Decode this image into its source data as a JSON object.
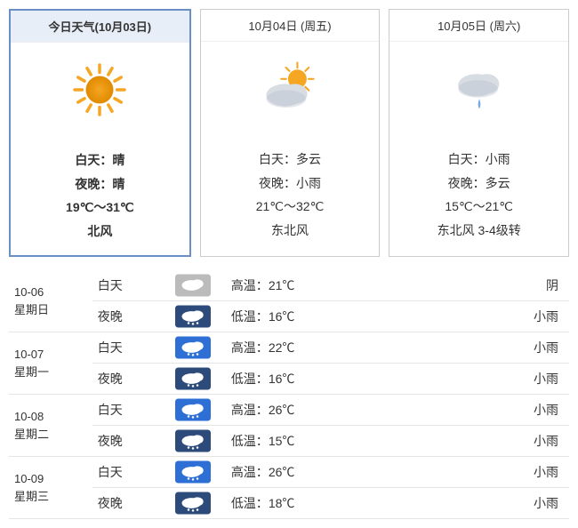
{
  "cards": [
    {
      "header": "今日天气(10月03日)",
      "active": true,
      "icon": "sunny",
      "day": "白天：晴",
      "night": "夜晚：晴",
      "temp": "19℃～31℃",
      "wind": "北风"
    },
    {
      "header": "10月04日 (周五)",
      "active": false,
      "icon": "partly",
      "day": "白天：多云",
      "night": "夜晚：小雨",
      "temp": "21℃～32℃",
      "wind": "东北风"
    },
    {
      "header": "10月05日 (周六)",
      "active": false,
      "icon": "rain",
      "day": "白天：小雨",
      "night": "夜晚：多云",
      "temp": "15℃～21℃",
      "wind": "东北风 3-4级转"
    }
  ],
  "rows": [
    {
      "date": "10-06",
      "dow": "星期日",
      "tod": "白天",
      "iconBg": "#bbbbbb",
      "iconFg": "#ffffff",
      "drops": false,
      "tlabel": "高温：",
      "tval": "21℃",
      "cond": "阴"
    },
    {
      "date": "",
      "dow": "",
      "tod": "夜晚",
      "iconBg": "#2d4b7a",
      "iconFg": "#ffffff",
      "drops": true,
      "tlabel": "低温：",
      "tval": "16℃",
      "cond": "小雨"
    },
    {
      "date": "10-07",
      "dow": "星期一",
      "tod": "白天",
      "iconBg": "#2e6fd6",
      "iconFg": "#ffffff",
      "drops": true,
      "tlabel": "高温：",
      "tval": "22℃",
      "cond": "小雨"
    },
    {
      "date": "",
      "dow": "",
      "tod": "夜晚",
      "iconBg": "#2d4b7a",
      "iconFg": "#ffffff",
      "drops": true,
      "tlabel": "低温：",
      "tval": "16℃",
      "cond": "小雨"
    },
    {
      "date": "10-08",
      "dow": "星期二",
      "tod": "白天",
      "iconBg": "#2e6fd6",
      "iconFg": "#ffffff",
      "drops": true,
      "tlabel": "高温：",
      "tval": "26℃",
      "cond": "小雨"
    },
    {
      "date": "",
      "dow": "",
      "tod": "夜晚",
      "iconBg": "#2d4b7a",
      "iconFg": "#ffffff",
      "drops": true,
      "tlabel": "低温：",
      "tval": "15℃",
      "cond": "小雨"
    },
    {
      "date": "10-09",
      "dow": "星期三",
      "tod": "白天",
      "iconBg": "#2e6fd6",
      "iconFg": "#ffffff",
      "drops": true,
      "tlabel": "高温：",
      "tval": "26℃",
      "cond": "小雨"
    },
    {
      "date": "",
      "dow": "",
      "tod": "夜晚",
      "iconBg": "#2d4b7a",
      "iconFg": "#ffffff",
      "drops": true,
      "tlabel": "低温：",
      "tval": "18℃",
      "cond": "小雨"
    }
  ],
  "colors": {
    "sun": "#f5a623",
    "sunDark": "#e08a00",
    "cloud": "#d8dde3",
    "cloudShadow": "#b8c0cc",
    "rainDrop": "#7aa7e6"
  }
}
